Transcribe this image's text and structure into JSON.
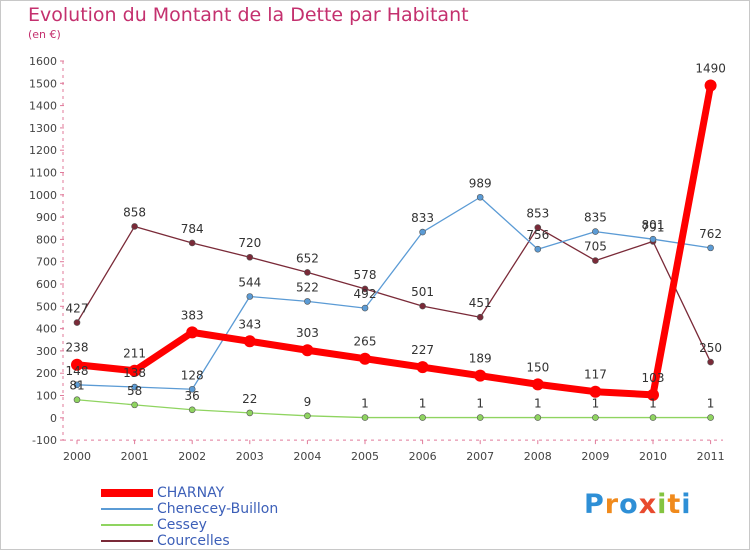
{
  "header": {
    "title": "Evolution du Montant de la Dette par Habitant",
    "unit": "(en €)"
  },
  "chart_data": {
    "type": "line",
    "title": "Evolution du Montant de la Dette par Habitant",
    "ylabel": "(en €)",
    "xlabel": "",
    "ylim": [
      -100,
      1600
    ],
    "yticks": [
      -100,
      0,
      100,
      200,
      300,
      400,
      500,
      600,
      700,
      800,
      900,
      1000,
      1100,
      1200,
      1300,
      1400,
      1500,
      1600
    ],
    "categories": [
      "2000",
      "2001",
      "2002",
      "2003",
      "2004",
      "2005",
      "2006",
      "2007",
      "2008",
      "2009",
      "2010",
      "2011"
    ],
    "legend_position": "bottom-left",
    "grid": false,
    "series": [
      {
        "name": "Courcelles",
        "color": "#7a2a38",
        "values": [
          427,
          858,
          784,
          720,
          652,
          578,
          501,
          451,
          853,
          705,
          791,
          250
        ],
        "labels": [
          "427",
          "858",
          "784",
          "720",
          "652",
          "578",
          "501",
          "451",
          "853",
          "705",
          "791",
          "250"
        ]
      },
      {
        "name": "Chenecey-Buillon",
        "color": "#5b9bd5",
        "values": [
          148,
          138,
          128,
          544,
          522,
          492,
          833,
          989,
          756,
          835,
          801,
          762
        ],
        "labels": [
          "148",
          "138",
          "128",
          "544",
          "522",
          "492",
          "833",
          "989",
          "756",
          "835",
          "801",
          "762"
        ]
      },
      {
        "name": "Cessey",
        "color": "#8fd460",
        "values": [
          81,
          58,
          36,
          22,
          9,
          1,
          1,
          1,
          1,
          1,
          1,
          1
        ],
        "labels": [
          "81",
          "58",
          "36",
          "22",
          "9",
          "1",
          "1",
          "1",
          "1",
          "1",
          "1",
          "1"
        ]
      },
      {
        "name": "CHARNAY",
        "color": "#ff0000",
        "values": [
          238,
          211,
          383,
          343,
          303,
          265,
          227,
          189,
          150,
          117,
          103,
          1490
        ],
        "labels": [
          "238",
          "211",
          "383",
          "343",
          "303",
          "265",
          "227",
          "189",
          "150",
          "117",
          "103",
          "1490"
        ]
      }
    ]
  },
  "legend": {
    "items": [
      {
        "label": "CHARNAY",
        "color": "#ff0000"
      },
      {
        "label": "Chenecey-Buillon",
        "color": "#5b9bd5"
      },
      {
        "label": "Cessey",
        "color": "#8fd460"
      },
      {
        "label": "Courcelles",
        "color": "#7a2a38"
      }
    ]
  },
  "brand": {
    "letters": [
      "P",
      "r",
      "o",
      "x",
      "i",
      "t",
      "i"
    ],
    "colors": [
      "#2e8fd6",
      "#f08a1c",
      "#2e8fd6",
      "#e84a2e",
      "#84c441",
      "#f08a1c",
      "#2e8fd6"
    ]
  }
}
